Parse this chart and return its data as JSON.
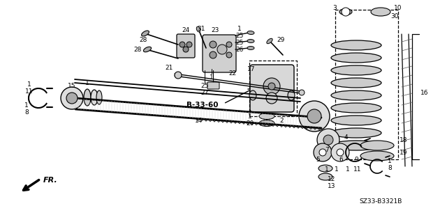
{
  "bg_color": "#ffffff",
  "fig_width": 6.4,
  "fig_height": 3.19,
  "dpi": 100,
  "diagram_code": "SZ33-B3321B",
  "ref_code": "B-33-60",
  "arrow_label": "FR."
}
